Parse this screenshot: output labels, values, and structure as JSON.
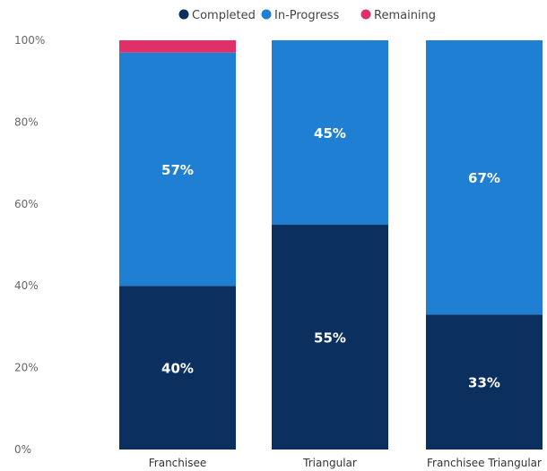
{
  "chart_data": {
    "type": "bar",
    "stacked": true,
    "percent": true,
    "categories": [
      "Franchisee",
      "Triangular",
      "Franchisee Triangular"
    ],
    "series": [
      {
        "name": "Completed",
        "color": "#0b3060",
        "values": [
          40,
          55,
          33
        ],
        "labels": [
          "40%",
          "55%",
          "33%"
        ]
      },
      {
        "name": "In-Progress",
        "color": "#1f7fd2",
        "values": [
          57,
          45,
          67
        ],
        "labels": [
          "57%",
          "45%",
          "67%"
        ]
      },
      {
        "name": "Remaining",
        "color": "#e0306a",
        "values": [
          3,
          0,
          0
        ],
        "labels": [
          "",
          "",
          ""
        ]
      }
    ],
    "yticks": [
      "0%",
      "20%",
      "40%",
      "60%",
      "80%",
      "100%"
    ],
    "ylim": [
      0,
      100
    ],
    "legend_position": "top",
    "grid": false
  }
}
